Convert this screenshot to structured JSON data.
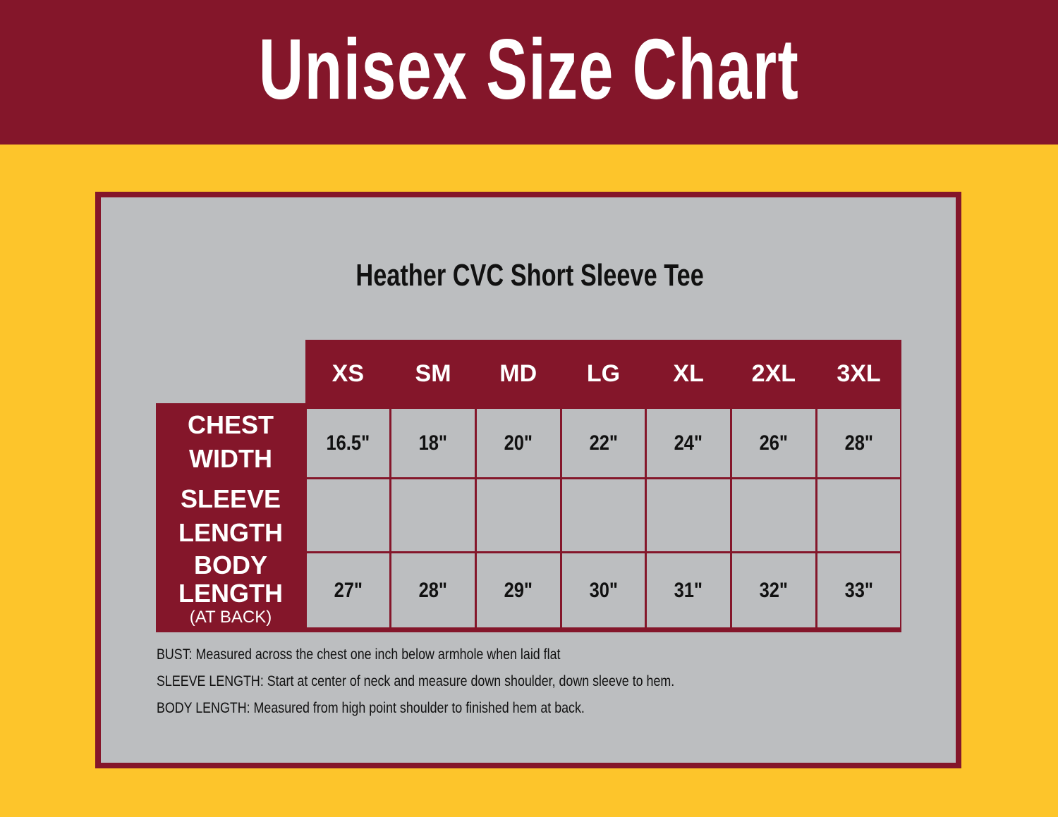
{
  "header": {
    "title": "Unisex Size Chart"
  },
  "product_title": "Heather CVC Short Sleeve Tee",
  "colors": {
    "maroon": "#84162A",
    "gold": "#FDC52B",
    "panel_gray": "#BCBEC0"
  },
  "table": {
    "columns": [
      "XS",
      "SM",
      "MD",
      "LG",
      "XL",
      "2XL",
      "3XL"
    ],
    "rows": [
      {
        "label_line1": "CHEST",
        "label_line2": "WIDTH",
        "values": [
          "16.5\"",
          "18\"",
          "20\"",
          "22\"",
          "24\"",
          "26\"",
          "28\""
        ]
      },
      {
        "label_line1": "SLEEVE",
        "label_line2": "LENGTH",
        "values": [
          "",
          "",
          "",
          "",
          "",
          "",
          ""
        ]
      },
      {
        "label_line1": "BODY",
        "label_line2": "LENGTH",
        "label_note": "(AT BACK)",
        "values": [
          "27\"",
          "28\"",
          "29\"",
          "30\"",
          "31\"",
          "32\"",
          "33\""
        ]
      }
    ]
  },
  "notes": [
    {
      "term": "BUST:",
      "text": " Measured across the chest one inch below armhole when laid flat"
    },
    {
      "term": "SLEEVE LENGTH:",
      "text": " Start at center of neck and measure down shoulder, down sleeve to hem."
    },
    {
      "term": "BODY LENGTH:",
      "text": " Measured from high point shoulder to finished hem at back."
    }
  ]
}
